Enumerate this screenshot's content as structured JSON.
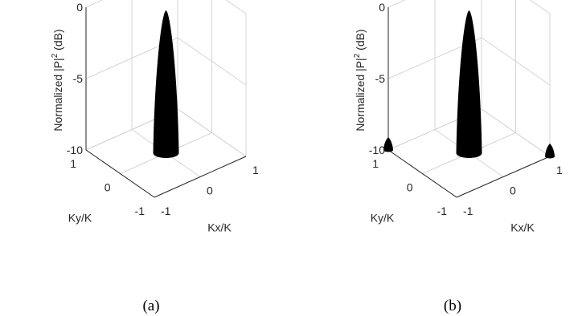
{
  "chart_data": [
    {
      "type": "surface",
      "caption": "(a)",
      "zlabel": "Normalized |P|² (dB)",
      "zlabel_main": "Normalized |P|",
      "zlabel_sup": "2",
      "zlabel_tail": " (dB)",
      "xlabel": "Kx/K",
      "ylabel": "Ky/K",
      "zticks": [
        "0",
        "-5",
        "-10"
      ],
      "xticks": [
        "-1",
        "0",
        "1"
      ],
      "yticks": [
        "1",
        "0",
        "-1"
      ],
      "zlim": [
        -10,
        0
      ],
      "xlim": [
        -1,
        1
      ],
      "ylim": [
        -1,
        1
      ],
      "grid": true,
      "peaks": [
        {
          "kx": 0,
          "ky": 0,
          "peak_db": 0
        }
      ]
    },
    {
      "type": "surface",
      "caption": "(b)",
      "zlabel": "Normalized |P|² (dB)",
      "zlabel_main": "Normalized |P|",
      "zlabel_sup": "2",
      "zlabel_tail": " (dB)",
      "xlabel": "Kx/K",
      "ylabel": "Ky/K",
      "zticks": [
        "0",
        "-5",
        "-10"
      ],
      "xticks": [
        "-1",
        "0",
        "1"
      ],
      "yticks": [
        "1",
        "0",
        "-1"
      ],
      "zlim": [
        -10,
        0
      ],
      "xlim": [
        -1,
        1
      ],
      "ylim": [
        -1,
        1
      ],
      "grid": true,
      "peaks": [
        {
          "kx": 0,
          "ky": 0,
          "peak_db": 0
        },
        {
          "kx": -1,
          "ky": 1,
          "peak_db": -9.1
        },
        {
          "kx": 1,
          "ky": -1,
          "peak_db": -9.1
        }
      ]
    }
  ]
}
